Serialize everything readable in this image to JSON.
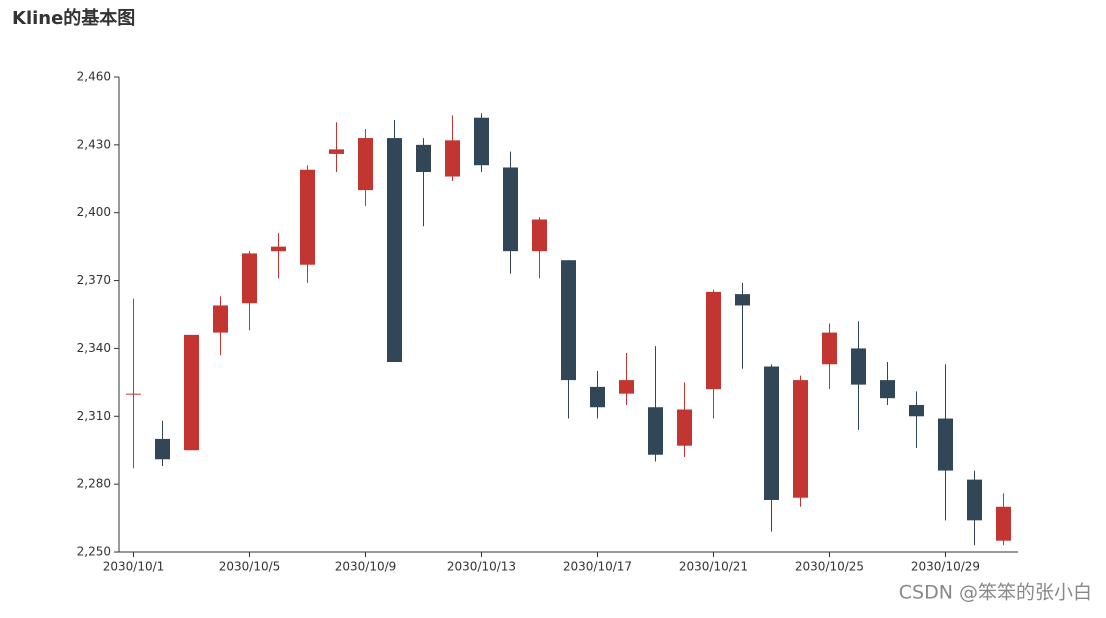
{
  "chart_data": {
    "type": "candlestick",
    "title": "Kline的基本图",
    "categories": [
      "2030/10/1",
      null,
      null,
      null,
      "2030/10/5",
      null,
      null,
      null,
      "2030/10/9",
      null,
      null,
      null,
      "2030/10/13",
      null,
      null,
      null,
      "2030/10/17",
      null,
      null,
      null,
      "2030/10/21",
      null,
      null,
      null,
      "2030/10/25",
      null,
      null,
      null,
      "2030/10/29",
      null,
      null
    ],
    "open": [
      2320,
      2300,
      2295,
      2347,
      2360,
      2383,
      2377,
      2426,
      2410,
      2433,
      2430,
      2416,
      2442,
      2420,
      2383,
      2379,
      2323,
      2320,
      2314,
      2297,
      2322,
      2364,
      2332,
      2274,
      2333,
      2340,
      2326,
      2315,
      2309,
      2282,
      2255
    ],
    "close": [
      2320,
      2291,
      2346,
      2359,
      2382,
      2385,
      2419,
      2428,
      2433,
      2334,
      2418,
      2432,
      2421,
      2383,
      2397,
      2326,
      2314,
      2326,
      2293,
      2313,
      2365,
      2359,
      2273,
      2326,
      2347,
      2324,
      2318,
      2310,
      2286,
      2264,
      2270
    ],
    "low": [
      2287,
      2288,
      2295,
      2337,
      2348,
      2371,
      2369,
      2418,
      2403,
      2334,
      2394,
      2414,
      2418,
      2373,
      2371,
      2309,
      2309,
      2315,
      2290,
      2292,
      2309,
      2331,
      2259,
      2270,
      2322,
      2304,
      2315,
      2296,
      2264,
      2253,
      2253
    ],
    "high": [
      2362,
      2308,
      2346,
      2363,
      2383,
      2391,
      2421,
      2440,
      2437,
      2441,
      2433,
      2443,
      2444,
      2427,
      2398,
      2379,
      2330,
      2338,
      2341,
      2325,
      2366,
      2369,
      2333,
      2328,
      2351,
      2352,
      2334,
      2321,
      2333,
      2286,
      2276
    ],
    "up_color": "#c23531",
    "down_color": "#314656",
    "ylim": [
      2250,
      2460
    ],
    "yticks": [
      {
        "value": 2250,
        "label": "2,250"
      },
      {
        "value": 2280,
        "label": "2,280"
      },
      {
        "value": 2310,
        "label": "2,310"
      },
      {
        "value": 2340,
        "label": "2,340"
      },
      {
        "value": 2370,
        "label": "2,370"
      },
      {
        "value": 2400,
        "label": "2,400"
      },
      {
        "value": 2430,
        "label": "2,430"
      },
      {
        "value": 2460,
        "label": "2,460"
      }
    ],
    "watermark": "CSDN @笨笨的张小白"
  }
}
